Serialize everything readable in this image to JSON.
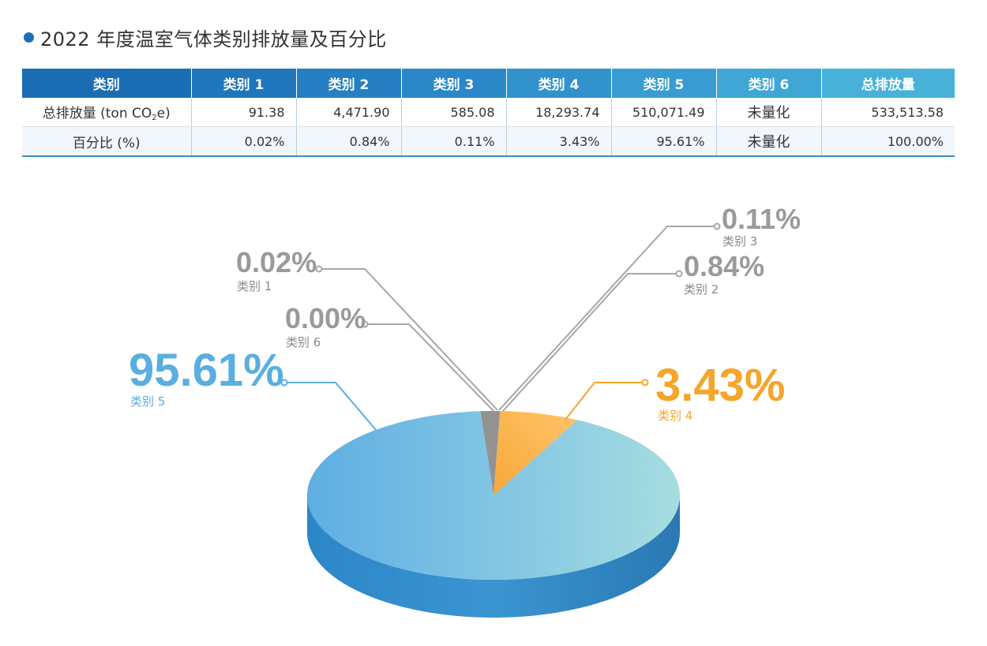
{
  "title": "2022 年度温室气体类别排放量及百分比",
  "colors": {
    "accent": "#1d6fb5",
    "cat5": "#5aaee0",
    "cat4": "#f5a52a",
    "gray_labels": "#9a9a9a"
  },
  "table": {
    "headers": [
      "类别",
      "类别 1",
      "类别 2",
      "类别 3",
      "类别 4",
      "类别 5",
      "类别 6",
      "总排放量"
    ],
    "rows": [
      {
        "label_prefix": "总排放量 (ton CO",
        "label_sub": "2",
        "label_suffix": "e)",
        "cells": [
          "91.38",
          "4,471.90",
          "585.08",
          "18,293.74",
          "510,071.49",
          "未量化",
          "533,513.58"
        ]
      },
      {
        "label": "百分比 (%)",
        "cells": [
          "0.02%",
          "0.84%",
          "0.11%",
          "3.43%",
          "95.61%",
          "未量化",
          "100.00%"
        ]
      }
    ]
  },
  "chart_data": {
    "type": "pie",
    "title": "",
    "slices": [
      {
        "name": "类别 1",
        "value": 0.02,
        "pct_label": "0.02%",
        "cat_label": "类别 1",
        "color": "#9a9a9a"
      },
      {
        "name": "类别 2",
        "value": 0.84,
        "pct_label": "0.84%",
        "cat_label": "类别 2",
        "color": "#9a9a9a"
      },
      {
        "name": "类别 3",
        "value": 0.11,
        "pct_label": "0.11%",
        "cat_label": "类别 3",
        "color": "#9a9a9a"
      },
      {
        "name": "类别 4",
        "value": 3.43,
        "pct_label": "3.43%",
        "cat_label": "类别 4",
        "color": "#f5a52a"
      },
      {
        "name": "类别 5",
        "value": 95.61,
        "pct_label": "95.61%",
        "cat_label": "类别 5",
        "color": "#5aaee0"
      },
      {
        "name": "类别 6",
        "value": 0.0,
        "pct_label": "0.00%",
        "cat_label": "类别 6",
        "color": "#9a9a9a"
      }
    ],
    "legend": "callouts"
  }
}
